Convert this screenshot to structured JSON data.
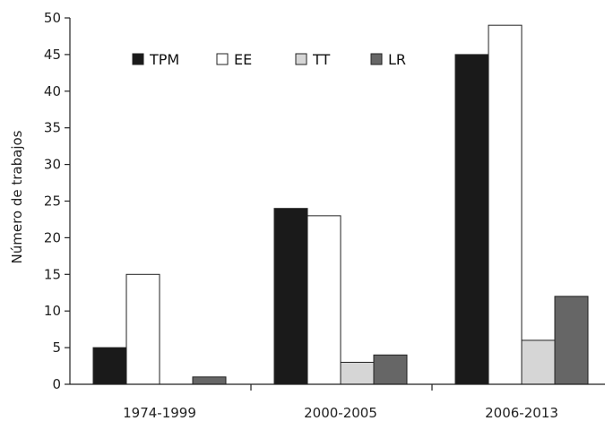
{
  "chart_data": {
    "type": "bar",
    "title": "",
    "xlabel": "",
    "ylabel": "Número de trabajos",
    "ylim": [
      0,
      50
    ],
    "yticks": [
      0,
      5,
      10,
      15,
      20,
      25,
      30,
      35,
      40,
      45,
      50
    ],
    "grid": false,
    "legend_position": "top-left",
    "categories": [
      "1974-1999",
      "2000-2005",
      "2006-2013"
    ],
    "series": [
      {
        "name": "TPM",
        "values": [
          5,
          24,
          45
        ],
        "color": "#1a1a1a"
      },
      {
        "name": "EE",
        "values": [
          15,
          23,
          49
        ],
        "color": "#ffffff"
      },
      {
        "name": "TT",
        "values": [
          0,
          3,
          6
        ],
        "color": "#d6d6d6"
      },
      {
        "name": "LR",
        "values": [
          1,
          4,
          12
        ],
        "color": "#666666"
      }
    ]
  }
}
